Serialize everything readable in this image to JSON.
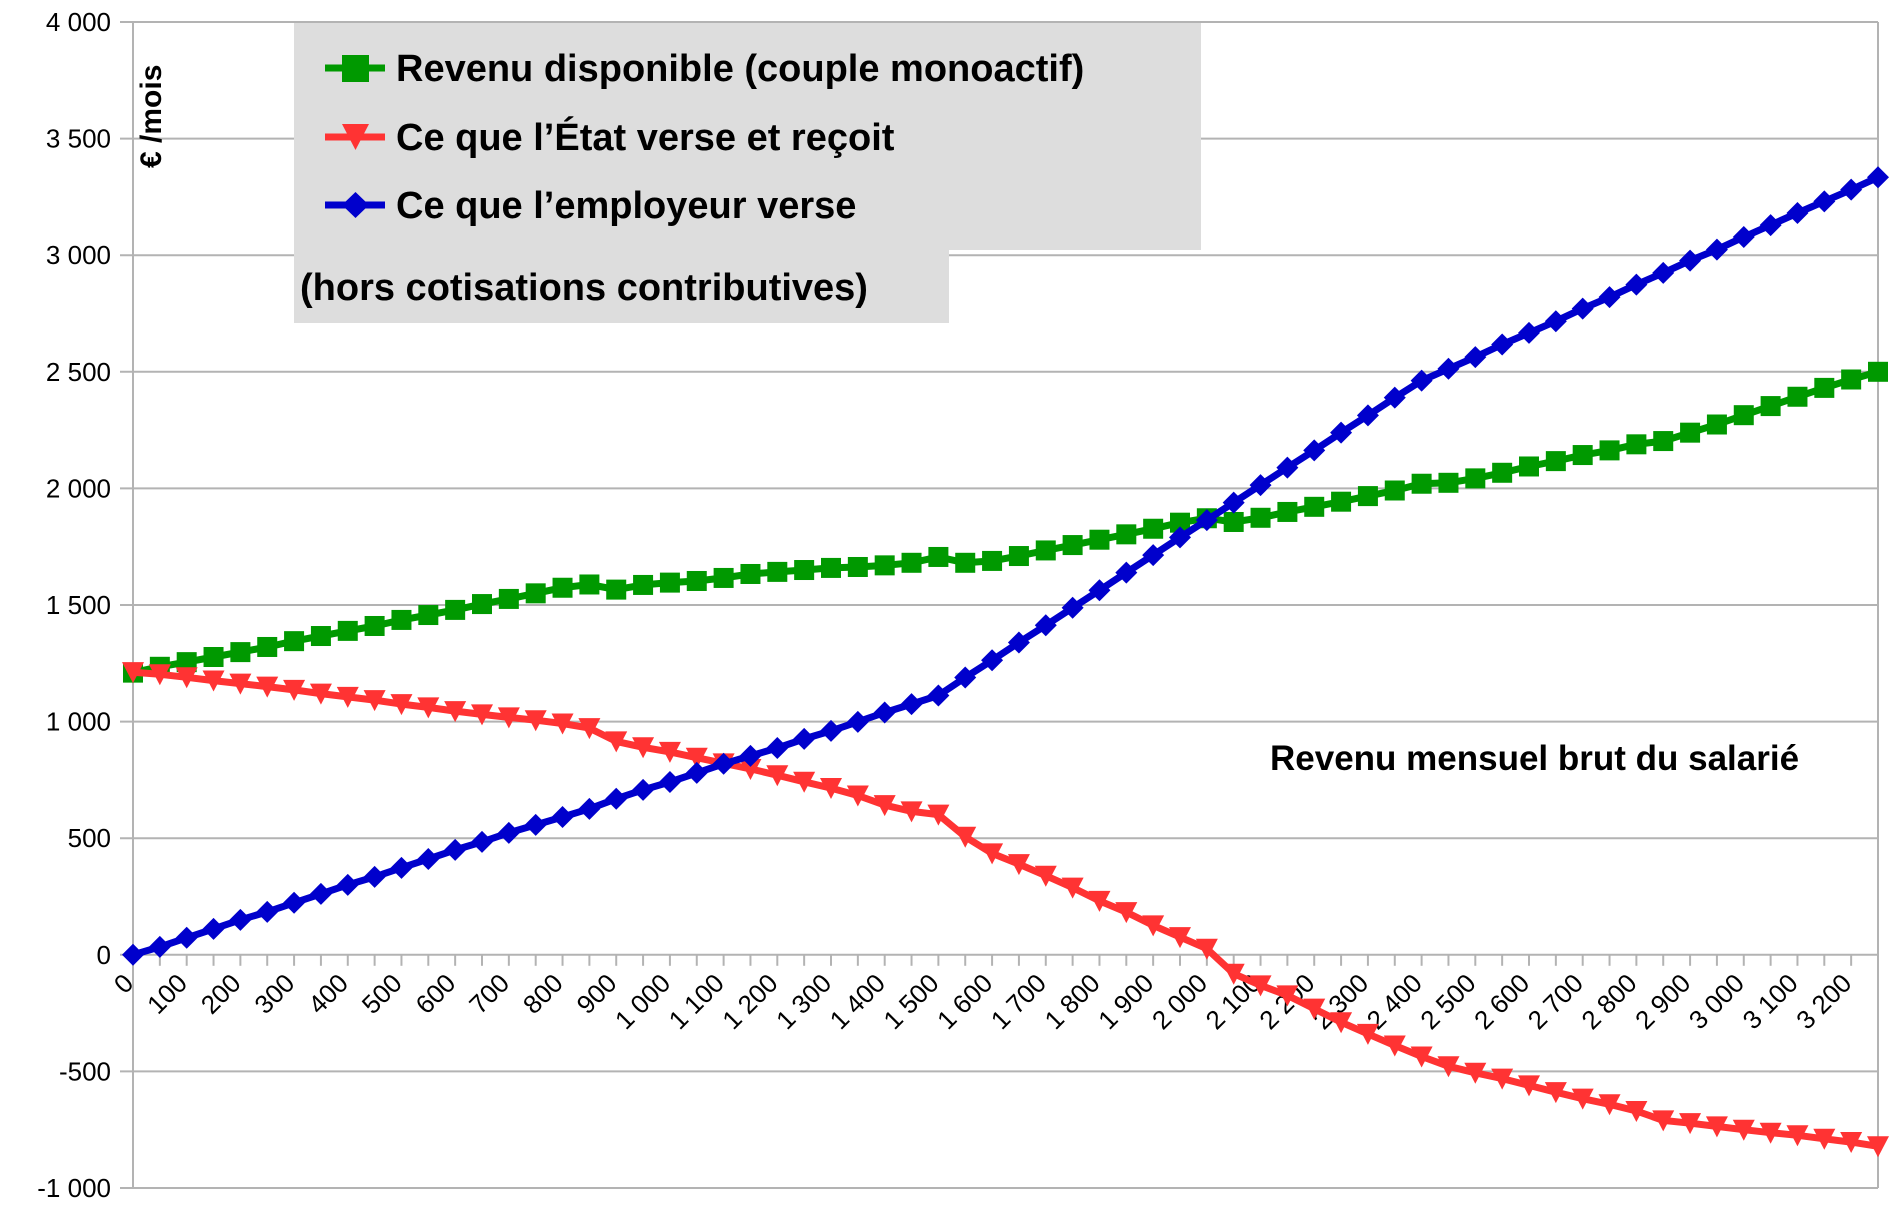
{
  "chart_data": {
    "type": "line",
    "title": "",
    "xlabel": "Revenu mensuel brut du salarié",
    "ylabel": "€ /mois",
    "note": "(hors cotisations contributives)",
    "ylim": [
      -1000,
      4000
    ],
    "y_ticks": [
      -1000,
      -500,
      0,
      500,
      1000,
      1500,
      2000,
      2500,
      3000,
      3500,
      4000
    ],
    "y_tick_labels": [
      "-1 000",
      "-500",
      "0",
      "500",
      "1 000",
      "1 500",
      "2 000",
      "2 500",
      "3 000",
      "3 500",
      "4 000"
    ],
    "x_tick_labels": [
      "0",
      "100",
      "200",
      "300",
      "400",
      "500",
      "600",
      "700",
      "800",
      "900",
      "1 000",
      "1 100",
      "1 200",
      "1 300",
      "1 400",
      "1 500",
      "1 600",
      "1 700",
      "1 800",
      "1 900",
      "2 000",
      "2 100",
      "2 200",
      "2 300",
      "2 400",
      "2 500",
      "2 600",
      "2 700",
      "2 800",
      "2 900",
      "3 000",
      "3 100",
      "3 200"
    ],
    "grid": true,
    "legend_position": "top-left",
    "x": [
      0,
      50,
      100,
      150,
      200,
      250,
      300,
      350,
      400,
      450,
      500,
      550,
      600,
      650,
      700,
      750,
      800,
      850,
      900,
      950,
      1000,
      1050,
      1100,
      1150,
      1200,
      1250,
      1300,
      1350,
      1400,
      1450,
      1500,
      1550,
      1600,
      1650,
      1700,
      1750,
      1800,
      1850,
      1900,
      1950,
      2000,
      2050,
      2100,
      2150,
      2200,
      2250,
      2300,
      2350,
      2400,
      2450,
      2500,
      2550,
      2600,
      2650,
      2700,
      2750,
      2800,
      2850,
      2900,
      2950,
      3000,
      3050,
      3100,
      3150,
      3200,
      3250
    ],
    "series": [
      {
        "name": "Revenu disponible (couple monoactif)",
        "color": "#009900",
        "marker": "square",
        "values": [
          1210,
          1235,
          1255,
          1277,
          1298,
          1320,
          1345,
          1367,
          1389,
          1410,
          1436,
          1457,
          1479,
          1504,
          1526,
          1550,
          1574,
          1588,
          1566,
          1586,
          1596,
          1603,
          1616,
          1633,
          1642,
          1650,
          1659,
          1663,
          1670,
          1681,
          1706,
          1681,
          1689,
          1710,
          1734,
          1757,
          1780,
          1803,
          1827,
          1853,
          1872,
          1856,
          1874,
          1899,
          1921,
          1943,
          1967,
          1991,
          2020,
          2024,
          2043,
          2067,
          2094,
          2117,
          2143,
          2163,
          2189,
          2203,
          2239,
          2274,
          2314,
          2353,
          2393,
          2431,
          2467,
          2500
        ]
      },
      {
        "name": "Ce que l’État verse et reçoit",
        "color": "#ff3333",
        "marker": "triangle-down",
        "values": [
          1212,
          1203,
          1190,
          1176,
          1163,
          1150,
          1136,
          1120,
          1106,
          1092,
          1075,
          1061,
          1045,
          1031,
          1018,
          1006,
          992,
          972,
          915,
          890,
          870,
          845,
          821,
          797,
          770,
          742,
          715,
          683,
          642,
          615,
          601,
          506,
          435,
          389,
          339,
          288,
          231,
          183,
          126,
          76,
          26,
          -81,
          -131,
          -174,
          -231,
          -289,
          -339,
          -389,
          -436,
          -478,
          -506,
          -531,
          -560,
          -589,
          -617,
          -641,
          -670,
          -710,
          -722,
          -736,
          -750,
          -763,
          -774,
          -789,
          -803,
          -821
        ]
      },
      {
        "name": "Ce que l’employeur verse",
        "color": "#0000cc",
        "marker": "diamond",
        "values": [
          0,
          34,
          73,
          111,
          150,
          184,
          223,
          261,
          300,
          334,
          373,
          411,
          450,
          484,
          523,
          557,
          591,
          626,
          669,
          707,
          741,
          780,
          819,
          853,
          887,
          926,
          960,
          999,
          1039,
          1075,
          1112,
          1189,
          1263,
          1339,
          1413,
          1488,
          1563,
          1639,
          1714,
          1790,
          1864,
          1939,
          2014,
          2089,
          2163,
          2239,
          2313,
          2389,
          2462,
          2513,
          2563,
          2617,
          2667,
          2717,
          2771,
          2820,
          2874,
          2924,
          2977,
          3024,
          3078,
          3129,
          3181,
          3231,
          3281,
          3334
        ]
      }
    ]
  },
  "colors": {
    "grid": "#b3b3b3",
    "legend_bg": "#dddddd"
  }
}
